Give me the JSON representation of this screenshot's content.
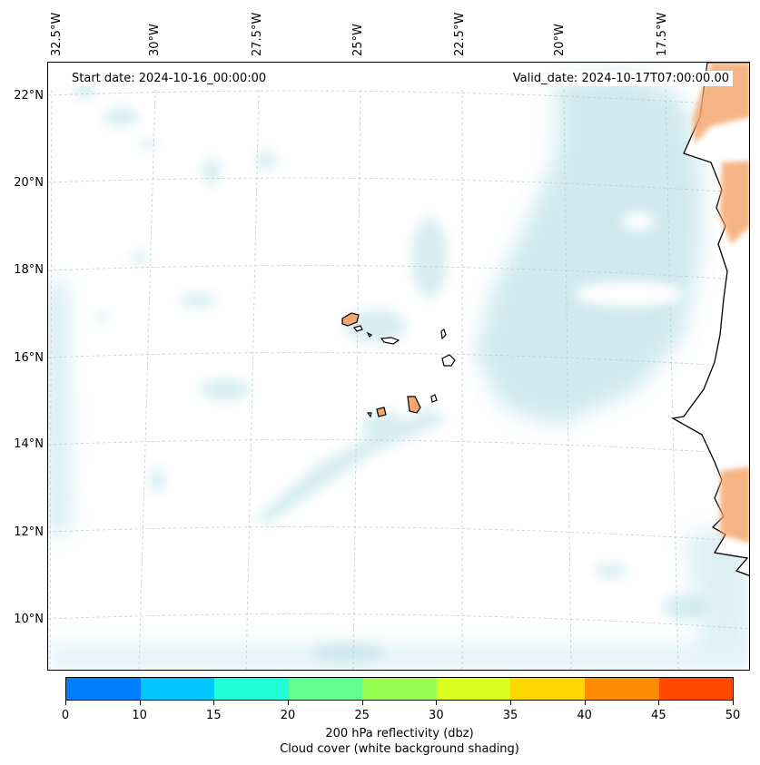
{
  "map": {
    "start_date": "Start date: 2024-10-16_00:00:00",
    "valid_date": "Valid_date: 2024-10-17T07:00:00.00",
    "longitude_labels": [
      "32.5°W",
      "30°W",
      "27.5°W",
      "25°W",
      "22.5°W",
      "20°W",
      "17.5°W"
    ],
    "latitude_labels": [
      "22°N",
      "20°N",
      "18°N",
      "16°N",
      "14°N",
      "12°N",
      "10°N"
    ],
    "features": {
      "islands": "Cape Verde islands",
      "coast": "West African coastline"
    }
  },
  "colorbar": {
    "tick_labels": [
      "0",
      "10",
      "15",
      "20",
      "25",
      "30",
      "35",
      "40",
      "45",
      "50"
    ],
    "colors": [
      "#0080ff",
      "#00c8ff",
      "#20ffd8",
      "#60ff90",
      "#98ff50",
      "#d8ff20",
      "#ffd800",
      "#ff8c00",
      "#ff4a00"
    ],
    "title_line1": "200 hPa reflectivity (dbz)",
    "title_line2": "Cloud cover (white background shading)"
  },
  "colors": {
    "cloud": "#a8d8e2",
    "land_orange": "#f4a870",
    "coast_line": "#000000"
  }
}
